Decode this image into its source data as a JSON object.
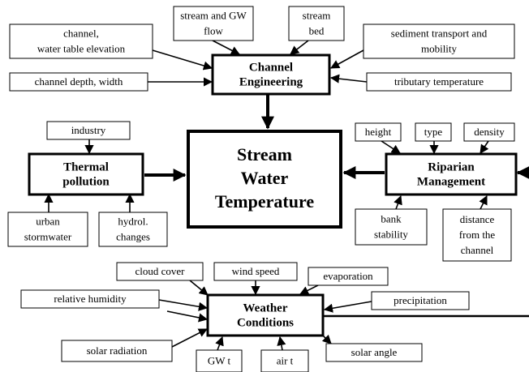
{
  "center": {
    "lines": [
      "Stream",
      "Water",
      "Temperature"
    ]
  },
  "hubs": [
    {
      "lines": [
        "Channel",
        "Engineering"
      ]
    },
    {
      "lines": [
        "Thermal",
        "pollution"
      ]
    },
    {
      "lines": [
        "Riparian",
        "Management"
      ]
    },
    {
      "lines": [
        "Weather",
        "Conditions"
      ]
    }
  ],
  "factors": [
    {
      "lines": [
        "stream and GW",
        "flow"
      ]
    },
    {
      "lines": [
        "stream",
        "bed"
      ]
    },
    {
      "lines": [
        "channel,",
        "water table elevation"
      ]
    },
    {
      "lines": [
        "sediment transport and",
        "mobility"
      ]
    },
    {
      "lines": [
        "channel depth, width"
      ]
    },
    {
      "lines": [
        "tributary temperature"
      ]
    },
    {
      "lines": [
        "industry"
      ]
    },
    {
      "lines": [
        "height"
      ]
    },
    {
      "lines": [
        "type"
      ]
    },
    {
      "lines": [
        "density"
      ]
    },
    {
      "lines": [
        "urban",
        "stormwater"
      ]
    },
    {
      "lines": [
        "hydrol.",
        "changes"
      ]
    },
    {
      "lines": [
        "bank",
        "stability"
      ]
    },
    {
      "lines": [
        "distance",
        "from the",
        "channel"
      ]
    },
    {
      "lines": [
        "cloud cover"
      ]
    },
    {
      "lines": [
        "wind speed"
      ]
    },
    {
      "lines": [
        "evaporation"
      ]
    },
    {
      "lines": [
        "relative humidity"
      ]
    },
    {
      "lines": [
        "precipitation"
      ]
    },
    {
      "lines": [
        "solar radiation"
      ]
    },
    {
      "lines": [
        "GW t"
      ]
    },
    {
      "lines": [
        "air t"
      ]
    },
    {
      "lines": [
        "solar angle"
      ]
    }
  ]
}
